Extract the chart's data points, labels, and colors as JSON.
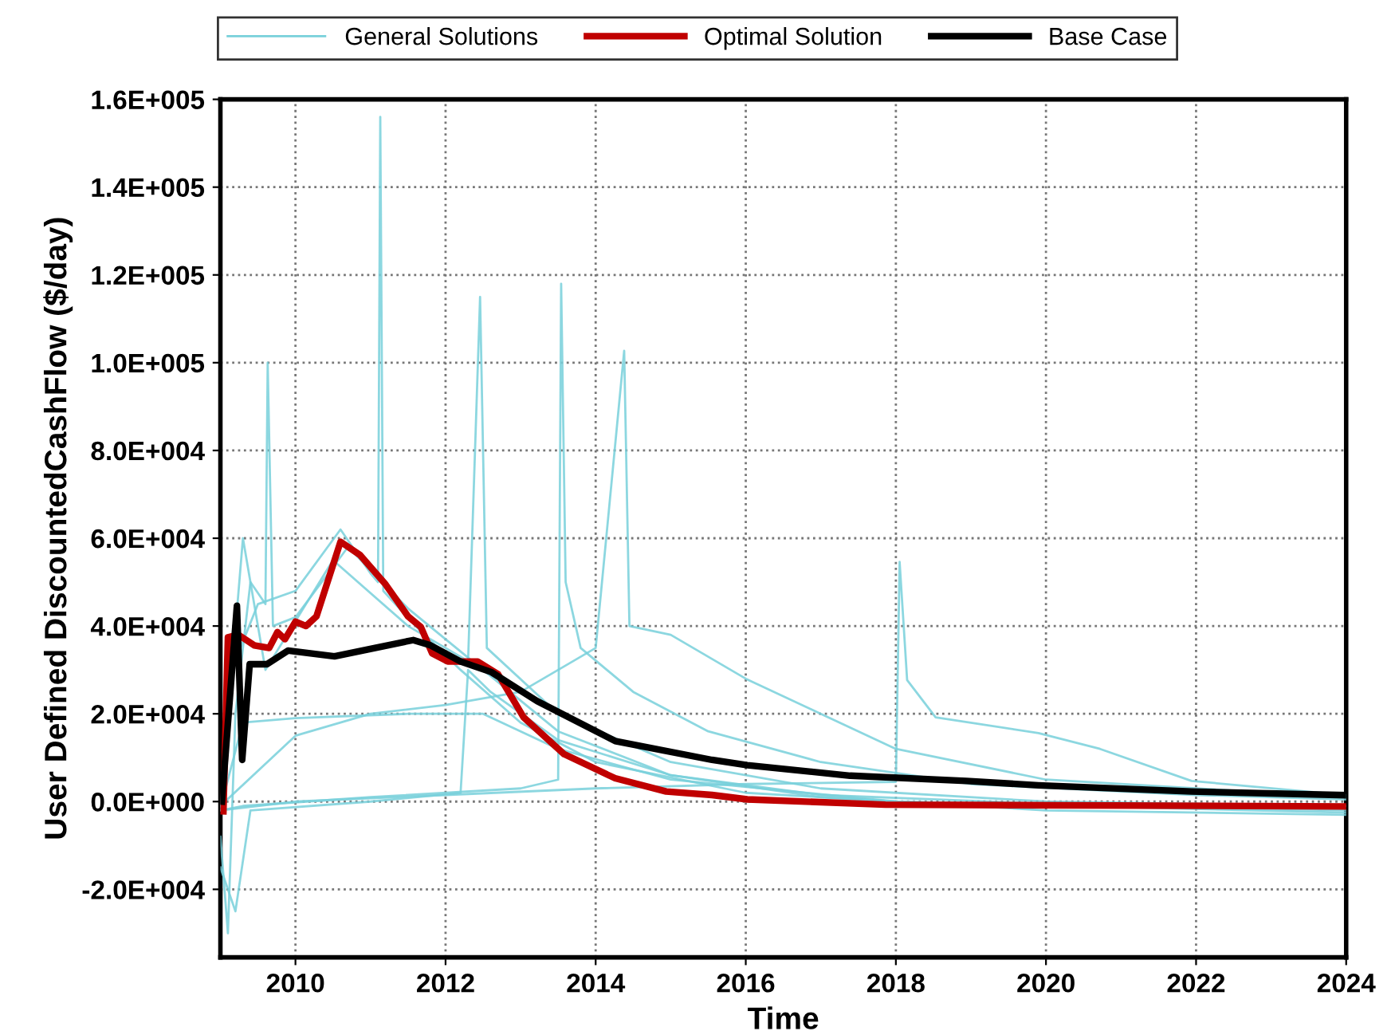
{
  "chart_data": {
    "type": "line",
    "xlabel": "Time",
    "ylabel": "User Defined DiscountedCashFlow ($/day)",
    "xlim": [
      2009,
      2024
    ],
    "xticks": [
      2010,
      2012,
      2014,
      2016,
      2018,
      2020,
      2022,
      2024
    ],
    "ylim": [
      -35500,
      160000
    ],
    "yticks": [
      {
        "value": -20000,
        "label": "-2.0E+004"
      },
      {
        "value": 0,
        "label": "0.0E+000"
      },
      {
        "value": 20000,
        "label": "2.0E+004"
      },
      {
        "value": 40000,
        "label": "4.0E+004"
      },
      {
        "value": 60000,
        "label": "6.0E+004"
      },
      {
        "value": 80000,
        "label": "8.0E+004"
      },
      {
        "value": 100000,
        "label": "1.0E+005"
      },
      {
        "value": 120000,
        "label": "1.2E+005"
      },
      {
        "value": 140000,
        "label": "1.4E+005"
      },
      {
        "value": 160000,
        "label": "1.6E+005"
      }
    ],
    "grid": true,
    "legend": "top",
    "marker": "none",
    "line_style": "solid",
    "series": [
      {
        "name": "General Solutions",
        "color": "#78d0da",
        "x": [
          2009.0,
          2009.15,
          2009.5,
          2010.0,
          2010.6,
          2011.0,
          2011.1,
          2011.13,
          2011.17,
          2011.6,
          2012.2,
          2013,
          2014,
          2016,
          2018,
          2020,
          2024
        ],
        "values": [
          -3000,
          30000,
          45000,
          48000,
          62000,
          52000,
          50000,
          156000,
          48000,
          40000,
          30000,
          18000,
          9000,
          2000,
          0,
          -1000,
          -1500
        ]
      },
      {
        "color": "#78d0da",
        "x": [
          2009.0,
          2009.1,
          2009.2,
          2009.4,
          2009.6,
          2009.63,
          2009.7,
          2010,
          2010.7,
          2011.5,
          2012.5,
          2013.5,
          2015,
          2017,
          2020,
          2024
        ],
        "values": [
          -8000,
          -30000,
          20000,
          50000,
          45000,
          100000,
          40000,
          42000,
          58000,
          44000,
          30000,
          16000,
          6000,
          1500,
          -500,
          -2000
        ]
      },
      {
        "color": "#78d0da",
        "x": [
          2009,
          2009.3,
          2011,
          2013,
          2013.5,
          2013.54,
          2013.6,
          2013.8,
          2014.5,
          2015.5,
          2017,
          2019,
          2022,
          2024
        ],
        "values": [
          -2000,
          -1000,
          1000,
          3000,
          5000,
          118000,
          50000,
          35000,
          25000,
          16000,
          9000,
          4000,
          1500,
          500
        ]
      },
      {
        "color": "#78d0da",
        "x": [
          2009,
          2010,
          2012,
          2014,
          2016,
          2018,
          2018.05,
          2018.15,
          2018.53,
          2019.9,
          2020.72,
          2021.94,
          2024
        ],
        "values": [
          -2000,
          0,
          1500,
          3000,
          4000,
          4500,
          54600,
          27700,
          19200,
          15600,
          12000,
          4700,
          1500
        ]
      },
      {
        "color": "#78d0da",
        "x": [
          2009,
          2010,
          2011,
          2012,
          2013,
          2014,
          2014.38,
          2014.45,
          2015,
          2016,
          2017,
          2018,
          2020,
          2024
        ],
        "values": [
          -1000,
          15000,
          20000,
          22000,
          25000,
          35000,
          102700,
          40000,
          38000,
          28000,
          20000,
          12000,
          5000,
          1000
        ]
      },
      {
        "color": "#78d0da",
        "x": [
          2009,
          2009.3,
          2010,
          2011.5,
          2012.5,
          2013.5,
          2015,
          2018,
          2024
        ],
        "values": [
          -1500,
          18000,
          19000,
          20000,
          20000,
          12000,
          5000,
          0,
          -2500
        ]
      },
      {
        "color": "#78d0da",
        "x": [
          2009,
          2009.2,
          2009.4,
          2011,
          2012.2,
          2012.3,
          2012.6,
          2013.5,
          2015,
          2017,
          2020,
          2024
        ],
        "values": [
          -15000,
          -25000,
          -2000,
          0,
          2000,
          30000,
          25000,
          14000,
          6000,
          1000,
          -2000,
          -3000
        ]
      },
      {
        "color": "#78d0da",
        "x": [
          2009,
          2009.3,
          2009.6,
          2010.5,
          2011.5,
          2012.3,
          2012.46,
          2012.55,
          2013.5,
          2015,
          2017,
          2020,
          2024
        ],
        "values": [
          -2000,
          60000,
          30000,
          55000,
          40000,
          32000,
          115000,
          35000,
          20000,
          9000,
          3000,
          0,
          -1000
        ]
      },
      {
        "name": "Optimal Solution",
        "color": "#c00000",
        "x": [
          2009.04,
          2009.1,
          2009.24,
          2009.45,
          2009.65,
          2009.76,
          2009.86,
          2010.0,
          2010.14,
          2010.28,
          2010.6,
          2010.86,
          2011.2,
          2011.5,
          2011.67,
          2011.82,
          2012.03,
          2012.43,
          2012.7,
          2013.04,
          2013.58,
          2014.26,
          2014.94,
          2015.55,
          2016.02,
          2017.86,
          2024
        ],
        "values": [
          -2200,
          37400,
          38000,
          35600,
          35000,
          38600,
          37000,
          41000,
          40000,
          42200,
          59200,
          56200,
          49500,
          42200,
          39800,
          33800,
          31900,
          31900,
          29000,
          19200,
          10800,
          5300,
          2300,
          1500,
          500,
          -700,
          -1100
        ]
      },
      {
        "name": "Base Case",
        "color": "#000000",
        "x": [
          2009.02,
          2009.22,
          2009.29,
          2009.39,
          2009.62,
          2009.9,
          2010.52,
          2011.06,
          2011.57,
          2011.8,
          2012.2,
          2012.61,
          2013.22,
          2014.26,
          2015.55,
          2016.02,
          2017.39,
          2018.94,
          2019.9,
          2021.94,
          2024
        ],
        "values": [
          0,
          44600,
          9500,
          31300,
          31300,
          34400,
          33100,
          35000,
          36800,
          35600,
          31900,
          29500,
          22900,
          13800,
          9500,
          8300,
          5900,
          4700,
          3700,
          2300,
          1450
        ]
      }
    ]
  }
}
